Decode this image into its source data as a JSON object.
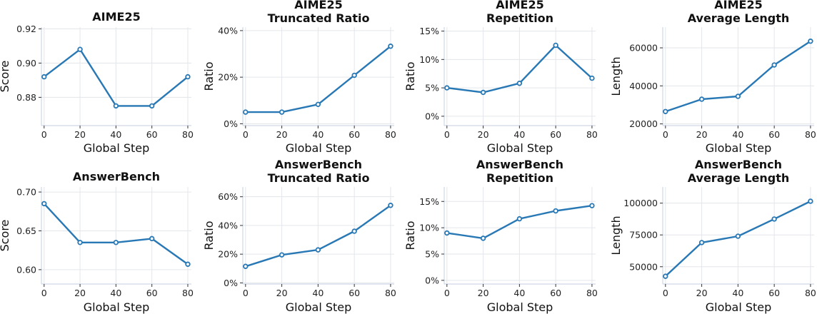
{
  "figure": {
    "series_color": "#2878b5"
  },
  "chart_data": [
    {
      "type": "line",
      "title": [
        "AIME25"
      ],
      "xlabel": "Global Step",
      "ylabel": "Score",
      "x": [
        0,
        20,
        40,
        60,
        80
      ],
      "values": [
        0.892,
        0.908,
        0.875,
        0.875,
        0.892
      ],
      "xlim": [
        -1.5,
        82
      ],
      "ylim": [
        0.8635,
        0.921
      ],
      "xticks": [
        0,
        20,
        40,
        60,
        80
      ],
      "xtick_labels": [
        "0",
        "20",
        "40",
        "60",
        "80"
      ],
      "yticks": [
        0.88,
        0.9,
        0.92
      ],
      "ytick_labels": [
        "0.88",
        "0.90",
        "0.92"
      ],
      "grid": true
    },
    {
      "type": "line",
      "title": [
        "AIME25",
        "Truncated Ratio"
      ],
      "xlabel": "Global Step",
      "ylabel": "Ratio",
      "x": [
        0,
        20,
        40,
        60,
        80
      ],
      "values": [
        0.05,
        0.05,
        0.083,
        0.208,
        0.333
      ],
      "xlim": [
        -1.5,
        82
      ],
      "ylim": [
        -0.008,
        0.415
      ],
      "xticks": [
        0,
        20,
        40,
        60,
        80
      ],
      "xtick_labels": [
        "0",
        "20",
        "40",
        "60",
        "80"
      ],
      "yticks": [
        0,
        0.2,
        0.4
      ],
      "ytick_labels": [
        "0%",
        "20%",
        "40%"
      ],
      "grid": true
    },
    {
      "type": "line",
      "title": [
        "AIME25",
        "Repetition"
      ],
      "xlabel": "Global Step",
      "ylabel": "Ratio",
      "x": [
        0,
        20,
        40,
        60,
        80
      ],
      "values": [
        0.05,
        0.042,
        0.058,
        0.125,
        0.067
      ],
      "xlim": [
        -1.5,
        82
      ],
      "ylim": [
        -0.0165,
        0.157
      ],
      "xticks": [
        0,
        20,
        40,
        60,
        80
      ],
      "xtick_labels": [
        "0",
        "20",
        "40",
        "60",
        "80"
      ],
      "yticks": [
        0,
        0.05,
        0.1,
        0.15
      ],
      "ytick_labels": [
        "0%",
        "5%",
        "10%",
        "15%"
      ],
      "grid": true
    },
    {
      "type": "line",
      "title": [
        "AIME25",
        "Average Length"
      ],
      "xlabel": "Global Step",
      "ylabel": "Length",
      "x": [
        0,
        20,
        40,
        60,
        80
      ],
      "values": [
        26500,
        33000,
        34500,
        51000,
        63500
      ],
      "xlim": [
        -1.5,
        82
      ],
      "ylim": [
        19100,
        70900
      ],
      "xticks": [
        0,
        20,
        40,
        60,
        80
      ],
      "xtick_labels": [
        "0",
        "20",
        "40",
        "60",
        "80"
      ],
      "yticks": [
        20000,
        40000,
        60000
      ],
      "ytick_labels": [
        "20000",
        "40000",
        "60000"
      ],
      "grid": true
    },
    {
      "type": "line",
      "title": [
        "AnswerBench"
      ],
      "xlabel": "Global Step",
      "ylabel": "Score",
      "x": [
        0,
        20,
        40,
        60,
        80
      ],
      "values": [
        0.685,
        0.635,
        0.635,
        0.64,
        0.607
      ],
      "xlim": [
        -1.5,
        82
      ],
      "ylim": [
        0.5815,
        0.7065
      ],
      "xticks": [
        0,
        20,
        40,
        60,
        80
      ],
      "xtick_labels": [
        "0",
        "20",
        "40",
        "60",
        "80"
      ],
      "yticks": [
        0.6,
        0.65,
        0.7
      ],
      "ytick_labels": [
        "0.60",
        "0.65",
        "0.70"
      ],
      "grid": true
    },
    {
      "type": "line",
      "title": [
        "AnswerBench",
        "Truncated Ratio"
      ],
      "xlabel": "Global Step",
      "ylabel": "Ratio",
      "x": [
        0,
        20,
        40,
        60,
        80
      ],
      "values": [
        0.115,
        0.195,
        0.23,
        0.36,
        0.54
      ],
      "xlim": [
        -1.5,
        82
      ],
      "ylim": [
        -0.008,
        0.668
      ],
      "xticks": [
        0,
        20,
        40,
        60,
        80
      ],
      "xtick_labels": [
        "0",
        "20",
        "40",
        "60",
        "80"
      ],
      "yticks": [
        0,
        0.2,
        0.4,
        0.6
      ],
      "ytick_labels": [
        "0%",
        "20%",
        "40%",
        "60%"
      ],
      "grid": true
    },
    {
      "type": "line",
      "title": [
        "AnswerBench",
        "Repetition"
      ],
      "xlabel": "Global Step",
      "ylabel": "Ratio",
      "x": [
        0,
        20,
        40,
        60,
        80
      ],
      "values": [
        0.09,
        0.08,
        0.117,
        0.132,
        0.142
      ],
      "xlim": [
        -1.5,
        82
      ],
      "ylim": [
        -0.007,
        0.1775
      ],
      "xticks": [
        0,
        20,
        40,
        60,
        80
      ],
      "xtick_labels": [
        "0",
        "20",
        "40",
        "60",
        "80"
      ],
      "yticks": [
        0,
        0.05,
        0.1,
        0.15
      ],
      "ytick_labels": [
        "0%",
        "5%",
        "10%",
        "15%"
      ],
      "grid": true
    },
    {
      "type": "line",
      "title": [
        "AnswerBench",
        "Average Length"
      ],
      "xlabel": "Global Step",
      "ylabel": "Length",
      "x": [
        0,
        20,
        40,
        60,
        80
      ],
      "values": [
        42500,
        69000,
        74000,
        87500,
        101500
      ],
      "xlim": [
        -1.5,
        82
      ],
      "ylim": [
        36400,
        112700
      ],
      "xticks": [
        0,
        20,
        40,
        60,
        80
      ],
      "xtick_labels": [
        "0",
        "20",
        "40",
        "60",
        "80"
      ],
      "yticks": [
        50000,
        75000,
        100000
      ],
      "ytick_labels": [
        "50000",
        "75000",
        "100000"
      ],
      "grid": true
    }
  ]
}
